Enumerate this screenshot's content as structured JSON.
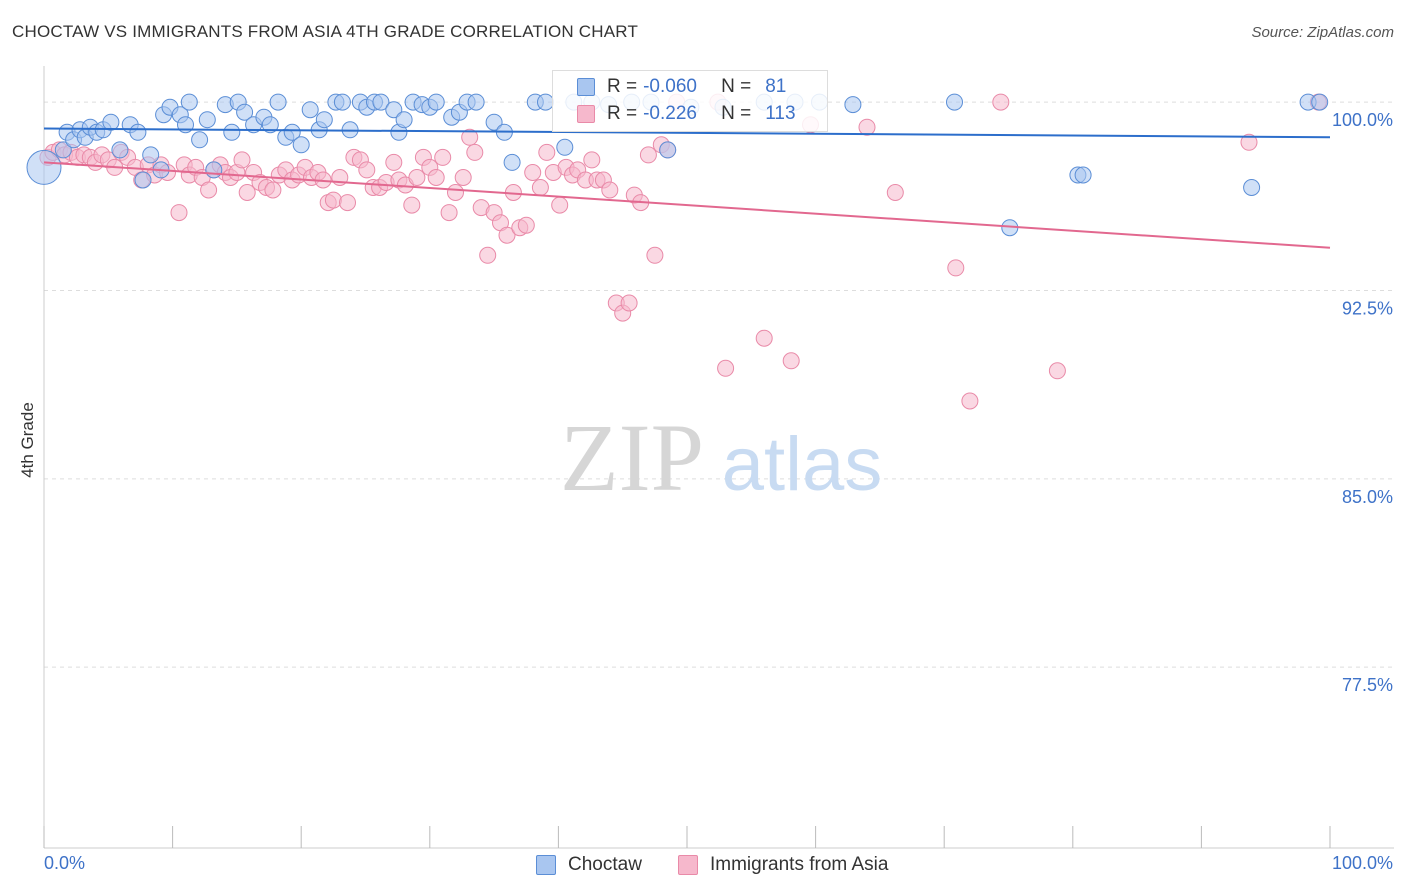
{
  "title": "CHOCTAW VS IMMIGRANTS FROM ASIA 4TH GRADE CORRELATION CHART",
  "source": "Source: ZipAtlas.com",
  "watermark": {
    "zip": "ZIP",
    "atlas": "atlas"
  },
  "legend": {
    "rows": [
      {
        "r_label": "R =",
        "r_value": "-0.060",
        "n_label": "N =",
        "n_value": "81"
      },
      {
        "r_label": "R =",
        "r_value": "-0.226",
        "n_label": "N =",
        "n_value": "113"
      }
    ]
  },
  "chart_data": {
    "type": "scatter",
    "title": "CHOCTAW VS IMMIGRANTS FROM ASIA 4TH GRADE CORRELATION CHART",
    "ylabel": "4th Grade",
    "xlabel": "",
    "x_tick_labels": [
      "0.0%",
      "100.0%"
    ],
    "y_tick_labels": [
      "100.0%",
      "92.5%",
      "85.0%",
      "77.5%"
    ],
    "y_ticks": [
      100.0,
      92.5,
      85.0,
      77.5
    ],
    "xlim": [
      0,
      100
    ],
    "ylim": [
      70.3,
      101.2
    ],
    "grid": true,
    "legend_position": "top-center",
    "colors": {
      "Choctaw": {
        "fill": "#a9c6f0",
        "stroke": "#5b8ed6",
        "line": "#2c6ecb"
      },
      "Immigrants from Asia": {
        "fill": "#f6b8cc",
        "stroke": "#e98aa8",
        "line": "#e2688f"
      }
    },
    "series": [
      {
        "name": "Choctaw",
        "R": -0.06,
        "N": 81,
        "trend": {
          "x": [
            0,
            100
          ],
          "y": [
            98.95,
            98.6
          ]
        },
        "points": [
          [
            0,
            97.4
          ],
          [
            1.5,
            98.1
          ],
          [
            1.8,
            98.8
          ],
          [
            2.3,
            98.5
          ],
          [
            2.8,
            98.9
          ],
          [
            3.2,
            98.6
          ],
          [
            3.6,
            99.0
          ],
          [
            4.1,
            98.8
          ],
          [
            4.6,
            98.9
          ],
          [
            5.2,
            99.2
          ],
          [
            5.9,
            98.1
          ],
          [
            6.7,
            99.1
          ],
          [
            7.3,
            98.8
          ],
          [
            7.7,
            96.9
          ],
          [
            8.3,
            97.9
          ],
          [
            9.1,
            97.3
          ],
          [
            9.3,
            99.5
          ],
          [
            9.8,
            99.8
          ],
          [
            10.6,
            99.5
          ],
          [
            11.0,
            99.1
          ],
          [
            11.3,
            100.0
          ],
          [
            12.1,
            98.5
          ],
          [
            12.7,
            99.3
          ],
          [
            13.2,
            97.3
          ],
          [
            14.1,
            99.9
          ],
          [
            14.6,
            98.8
          ],
          [
            15.1,
            100.0
          ],
          [
            15.6,
            99.6
          ],
          [
            16.3,
            99.1
          ],
          [
            17.1,
            99.4
          ],
          [
            17.6,
            99.1
          ],
          [
            18.2,
            100.0
          ],
          [
            18.8,
            98.6
          ],
          [
            19.3,
            98.8
          ],
          [
            20.0,
            98.3
          ],
          [
            20.7,
            99.7
          ],
          [
            21.4,
            98.9
          ],
          [
            21.8,
            99.3
          ],
          [
            22.7,
            100.0
          ],
          [
            23.2,
            100.0
          ],
          [
            23.8,
            98.9
          ],
          [
            24.6,
            100.0
          ],
          [
            25.1,
            99.8
          ],
          [
            25.7,
            100.0
          ],
          [
            26.2,
            100.0
          ],
          [
            27.2,
            99.7
          ],
          [
            27.6,
            98.8
          ],
          [
            28.0,
            99.3
          ],
          [
            28.7,
            100.0
          ],
          [
            29.4,
            99.9
          ],
          [
            30.0,
            99.8
          ],
          [
            30.5,
            100.0
          ],
          [
            31.7,
            99.4
          ],
          [
            32.3,
            99.6
          ],
          [
            32.9,
            100.0
          ],
          [
            33.6,
            100.0
          ],
          [
            35.0,
            99.2
          ],
          [
            35.8,
            98.8
          ],
          [
            36.4,
            97.6
          ],
          [
            38.2,
            100.0
          ],
          [
            39.0,
            100.0
          ],
          [
            40.5,
            98.2
          ],
          [
            41.2,
            100.0
          ],
          [
            42.6,
            100.0
          ],
          [
            43.9,
            99.9
          ],
          [
            45.7,
            100.0
          ],
          [
            47.2,
            100.0
          ],
          [
            48.5,
            98.1
          ],
          [
            50.3,
            99.8
          ],
          [
            52.8,
            99.8
          ],
          [
            56.0,
            100.0
          ],
          [
            58.4,
            100.0
          ],
          [
            60.3,
            100.0
          ],
          [
            62.9,
            99.9
          ],
          [
            70.8,
            100.0
          ],
          [
            75.1,
            95.0
          ],
          [
            80.4,
            97.1
          ],
          [
            80.8,
            97.1
          ],
          [
            93.9,
            96.6
          ],
          [
            98.3,
            100.0
          ],
          [
            99.2,
            100.0
          ]
        ]
      },
      {
        "name": "Immigrants from Asia",
        "R": -0.226,
        "N": 113,
        "trend": {
          "x": [
            0,
            100
          ],
          "y": [
            97.6,
            94.2
          ]
        },
        "points": [
          [
            0.3,
            97.8
          ],
          [
            0.7,
            98.0
          ],
          [
            1.2,
            98.1
          ],
          [
            1.6,
            97.9
          ],
          [
            2.1,
            98.0
          ],
          [
            2.6,
            97.8
          ],
          [
            3.1,
            97.9
          ],
          [
            3.6,
            97.8
          ],
          [
            4.0,
            97.6
          ],
          [
            4.5,
            97.9
          ],
          [
            5.0,
            97.7
          ],
          [
            5.5,
            97.4
          ],
          [
            6.0,
            98.0
          ],
          [
            6.5,
            97.8
          ],
          [
            7.1,
            97.4
          ],
          [
            7.6,
            96.9
          ],
          [
            8.1,
            97.5
          ],
          [
            8.6,
            97.1
          ],
          [
            9.1,
            97.5
          ],
          [
            9.6,
            97.2
          ],
          [
            10.5,
            95.6
          ],
          [
            10.9,
            97.5
          ],
          [
            11.3,
            97.1
          ],
          [
            11.8,
            97.4
          ],
          [
            12.3,
            97.0
          ],
          [
            12.8,
            96.5
          ],
          [
            13.2,
            97.3
          ],
          [
            13.7,
            97.5
          ],
          [
            14.1,
            97.2
          ],
          [
            14.5,
            97.0
          ],
          [
            15.0,
            97.2
          ],
          [
            15.4,
            97.7
          ],
          [
            15.8,
            96.4
          ],
          [
            16.3,
            97.2
          ],
          [
            16.8,
            96.8
          ],
          [
            17.3,
            96.6
          ],
          [
            17.8,
            96.5
          ],
          [
            18.3,
            97.1
          ],
          [
            18.8,
            97.3
          ],
          [
            19.3,
            96.9
          ],
          [
            19.8,
            97.1
          ],
          [
            20.3,
            97.4
          ],
          [
            20.8,
            97.0
          ],
          [
            21.3,
            97.2
          ],
          [
            21.7,
            96.9
          ],
          [
            22.1,
            96.0
          ],
          [
            22.5,
            96.1
          ],
          [
            23.0,
            97.0
          ],
          [
            23.6,
            96.0
          ],
          [
            24.1,
            97.8
          ],
          [
            24.6,
            97.7
          ],
          [
            25.1,
            97.3
          ],
          [
            25.6,
            96.6
          ],
          [
            26.1,
            96.6
          ],
          [
            26.6,
            96.8
          ],
          [
            27.2,
            97.6
          ],
          [
            27.6,
            96.9
          ],
          [
            28.1,
            96.7
          ],
          [
            28.6,
            95.9
          ],
          [
            29.0,
            97.0
          ],
          [
            29.5,
            97.8
          ],
          [
            30.0,
            97.4
          ],
          [
            30.5,
            97.0
          ],
          [
            31.0,
            97.8
          ],
          [
            31.5,
            95.6
          ],
          [
            32.0,
            96.4
          ],
          [
            32.6,
            97.0
          ],
          [
            33.1,
            98.6
          ],
          [
            33.5,
            98.0
          ],
          [
            34.0,
            95.8
          ],
          [
            34.5,
            93.9
          ],
          [
            35.0,
            95.6
          ],
          [
            35.5,
            95.2
          ],
          [
            36.0,
            94.7
          ],
          [
            36.5,
            96.4
          ],
          [
            37.0,
            95.0
          ],
          [
            37.5,
            95.1
          ],
          [
            38.0,
            97.2
          ],
          [
            38.6,
            96.6
          ],
          [
            39.1,
            98.0
          ],
          [
            39.6,
            97.2
          ],
          [
            40.1,
            95.9
          ],
          [
            40.6,
            97.4
          ],
          [
            41.1,
            97.1
          ],
          [
            41.5,
            97.3
          ],
          [
            42.1,
            96.9
          ],
          [
            42.6,
            97.7
          ],
          [
            43.0,
            96.9
          ],
          [
            43.5,
            96.9
          ],
          [
            44.0,
            96.5
          ],
          [
            44.5,
            92.0
          ],
          [
            45.0,
            91.6
          ],
          [
            45.5,
            92.0
          ],
          [
            45.9,
            96.3
          ],
          [
            46.4,
            96.0
          ],
          [
            47.0,
            97.9
          ],
          [
            47.5,
            93.9
          ],
          [
            48.0,
            98.3
          ],
          [
            48.5,
            98.1
          ],
          [
            49.2,
            100.0
          ],
          [
            52.4,
            100.0
          ],
          [
            53.0,
            89.4
          ],
          [
            56.0,
            90.6
          ],
          [
            58.1,
            89.7
          ],
          [
            59.6,
            99.1
          ],
          [
            64.0,
            99.0
          ],
          [
            66.2,
            96.4
          ],
          [
            70.9,
            93.4
          ],
          [
            72.0,
            88.1
          ],
          [
            74.4,
            100.0
          ],
          [
            78.8,
            89.3
          ],
          [
            93.7,
            98.4
          ],
          [
            99.1,
            100.0
          ]
        ]
      }
    ]
  },
  "bottom_legend": {
    "items": [
      "Choctaw",
      "Immigrants from Asia"
    ]
  }
}
